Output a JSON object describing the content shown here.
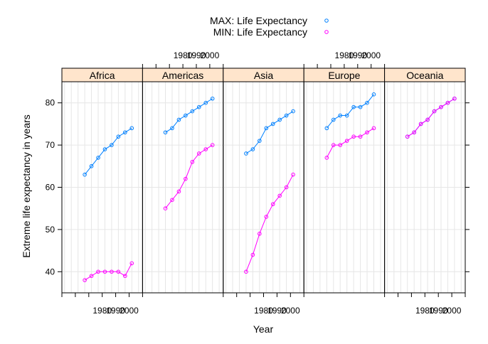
{
  "chart_data": {
    "type": "line",
    "panels": [
      "Africa",
      "Americas",
      "Asia",
      "Europe",
      "Oceania"
    ],
    "xlabel": "Year",
    "ylabel": "Extreme life expectancy in years",
    "xlim": [
      1950,
      2010
    ],
    "ylim": [
      35,
      85
    ],
    "x_ticks": [
      1980,
      1990,
      2000
    ],
    "x_tick_labels": [
      "1980",
      "1990",
      "2000"
    ],
    "y_ticks": [
      40,
      50,
      60,
      70,
      80
    ],
    "y_tick_labels": [
      "40",
      "50",
      "60",
      "70",
      "80"
    ],
    "x": [
      1952,
      1957,
      1962,
      1967,
      1972,
      1977,
      1982,
      1987,
      1992,
      1997,
      2002,
      2007
    ],
    "grid": true,
    "legend_position": "top",
    "series": [
      {
        "name": "MAX: Life Expectancy",
        "color": "#0080ff",
        "values": {
          "Africa": [
            null,
            null,
            null,
            63,
            65,
            67,
            69,
            70,
            72,
            73,
            74,
            null
          ],
          "Americas": [
            null,
            null,
            null,
            73,
            74,
            76,
            77,
            78,
            79,
            80,
            81,
            null
          ],
          "Asia": [
            null,
            null,
            null,
            68,
            69,
            71,
            74,
            75,
            76,
            77,
            78,
            null
          ],
          "Europe": [
            null,
            null,
            null,
            74,
            76,
            77,
            77,
            79,
            79,
            80,
            82,
            null
          ],
          "Oceania": [
            null,
            null,
            null,
            72,
            73,
            75,
            76,
            78,
            79,
            80,
            81,
            null
          ]
        }
      },
      {
        "name": "MIN: Life Expectancy",
        "color": "#ff00ff",
        "values": {
          "Africa": [
            null,
            null,
            null,
            38,
            39,
            40,
            40,
            40,
            40,
            39,
            42,
            null
          ],
          "Americas": [
            null,
            null,
            null,
            55,
            57,
            59,
            62,
            66,
            68,
            69,
            70,
            null
          ],
          "Asia": [
            null,
            null,
            null,
            40,
            44,
            49,
            53,
            56,
            58,
            60,
            63,
            null
          ],
          "Europe": [
            null,
            null,
            null,
            67,
            70,
            70,
            71,
            72,
            72,
            73,
            74,
            null
          ],
          "Oceania": [
            null,
            null,
            null,
            72,
            73,
            75,
            76,
            78,
            79,
            80,
            81,
            null
          ]
        }
      }
    ]
  },
  "colors": {
    "strip_background": "#ffe5cc",
    "grid": "#e6e6e6",
    "panel_border": "#000000"
  }
}
